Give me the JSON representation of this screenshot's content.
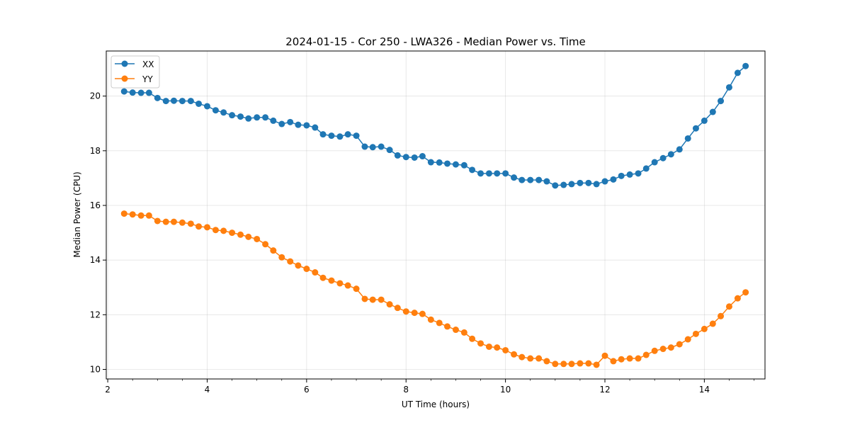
{
  "chart_data": {
    "type": "line",
    "title": "2024-01-15 - Cor 250 - LWA326 - Median Power vs. Time",
    "xlabel": "UT Time (hours)",
    "ylabel": "Median Power (CPU)",
    "xlim": [
      1.97,
      15.22
    ],
    "ylim": [
      9.65,
      21.65
    ],
    "xticks": [
      2,
      4,
      6,
      8,
      10,
      12,
      14
    ],
    "yticks": [
      10,
      12,
      14,
      16,
      18,
      20
    ],
    "grid": true,
    "legend_position": "top-left",
    "x": [
      2.33,
      2.5,
      2.67,
      2.83,
      3.0,
      3.17,
      3.33,
      3.5,
      3.67,
      3.83,
      4.0,
      4.17,
      4.33,
      4.5,
      4.67,
      4.83,
      5.0,
      5.17,
      5.33,
      5.5,
      5.67,
      5.83,
      6.0,
      6.17,
      6.33,
      6.5,
      6.67,
      6.83,
      7.0,
      7.17,
      7.33,
      7.5,
      7.67,
      7.83,
      8.0,
      8.17,
      8.33,
      8.5,
      8.67,
      8.83,
      9.0,
      9.17,
      9.33,
      9.5,
      9.67,
      9.83,
      10.0,
      10.17,
      10.33,
      10.5,
      10.67,
      10.83,
      11.0,
      11.17,
      11.33,
      11.5,
      11.67,
      11.83,
      12.0,
      12.17,
      12.33,
      12.5,
      12.67,
      12.83,
      13.0,
      13.17,
      13.33,
      13.5,
      13.67,
      13.83,
      14.0,
      14.17,
      14.33,
      14.5,
      14.67,
      14.83
    ],
    "series": [
      {
        "name": "XX",
        "color": "#1f77b4",
        "values": [
          20.17,
          20.13,
          20.12,
          20.12,
          19.93,
          19.82,
          19.83,
          19.82,
          19.82,
          19.72,
          19.63,
          19.48,
          19.4,
          19.3,
          19.25,
          19.18,
          19.22,
          19.22,
          19.1,
          18.98,
          19.05,
          18.95,
          18.93,
          18.85,
          18.6,
          18.55,
          18.52,
          18.6,
          18.55,
          18.15,
          18.13,
          18.15,
          18.03,
          17.83,
          17.77,
          17.75,
          17.8,
          17.58,
          17.57,
          17.53,
          17.5,
          17.47,
          17.3,
          17.17,
          17.17,
          17.17,
          17.17,
          17.02,
          16.93,
          16.93,
          16.93,
          16.88,
          16.73,
          16.75,
          16.78,
          16.82,
          16.82,
          16.78,
          16.88,
          16.95,
          17.08,
          17.13,
          17.17,
          17.35,
          17.58,
          17.73,
          17.87,
          18.05,
          18.45,
          18.82,
          19.1,
          19.42,
          19.82,
          20.32,
          20.85,
          21.1
        ]
      },
      {
        "name": "YY",
        "color": "#ff7f0e",
        "values": [
          15.7,
          15.67,
          15.63,
          15.63,
          15.43,
          15.4,
          15.4,
          15.37,
          15.33,
          15.23,
          15.2,
          15.1,
          15.07,
          15.0,
          14.93,
          14.85,
          14.77,
          14.58,
          14.35,
          14.1,
          13.95,
          13.8,
          13.68,
          13.55,
          13.35,
          13.25,
          13.15,
          13.07,
          12.95,
          12.58,
          12.55,
          12.55,
          12.38,
          12.25,
          12.12,
          12.07,
          12.03,
          11.82,
          11.7,
          11.57,
          11.45,
          11.35,
          11.12,
          10.95,
          10.83,
          10.8,
          10.7,
          10.55,
          10.45,
          10.4,
          10.4,
          10.3,
          10.2,
          10.2,
          10.2,
          10.22,
          10.22,
          10.17,
          10.5,
          10.3,
          10.37,
          10.4,
          10.4,
          10.53,
          10.68,
          10.75,
          10.8,
          10.92,
          11.1,
          11.3,
          11.48,
          11.67,
          11.95,
          12.3,
          12.6,
          12.82
        ]
      }
    ]
  }
}
